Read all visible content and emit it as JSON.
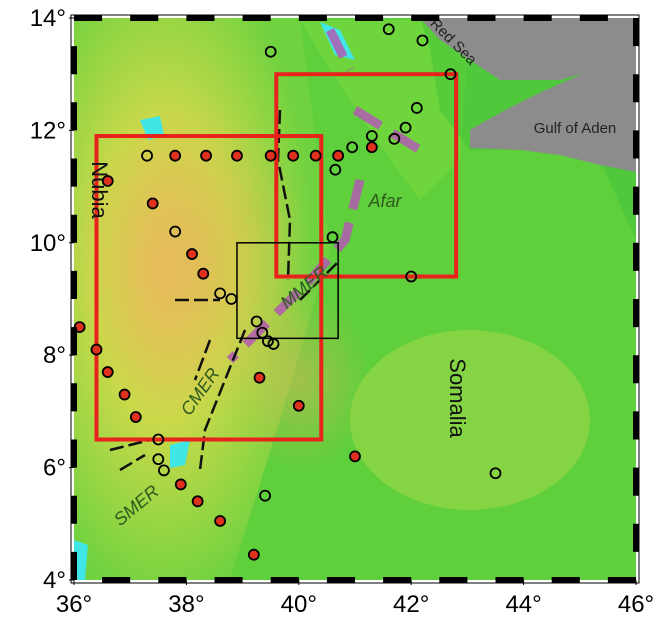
{
  "map": {
    "xlim": [
      36,
      46
    ],
    "ylim": [
      4,
      14
    ],
    "xticks": [
      {
        "value": 36,
        "label": "36°"
      },
      {
        "value": 38,
        "label": "38°"
      },
      {
        "value": 40,
        "label": "40°"
      },
      {
        "value": 42,
        "label": "42°"
      },
      {
        "value": 44,
        "label": "44°"
      },
      {
        "value": 46,
        "label": "46°"
      }
    ],
    "yticks": [
      {
        "value": 4,
        "label": "4°"
      },
      {
        "value": 6,
        "label": "6°"
      },
      {
        "value": 8,
        "label": "8°"
      },
      {
        "value": 10,
        "label": "10°"
      },
      {
        "value": 12,
        "label": "12°"
      },
      {
        "value": 14,
        "label": "14°"
      }
    ],
    "labels": {
      "nubia": "Nubia",
      "somalia": "Somalia",
      "afar": "Afar",
      "red_sea": "Red Sea",
      "gulf": "Gulf of Aden",
      "mmer": "MMER",
      "cmer": "CMER",
      "smer": "SMER"
    },
    "boxes": [
      {
        "color": "#e8231c",
        "lon": [
          36.4,
          40.4
        ],
        "lat": [
          6.5,
          11.9
        ]
      },
      {
        "color": "#e8231c",
        "lon": [
          39.6,
          42.8
        ],
        "lat": [
          9.4,
          13.0
        ]
      },
      {
        "color": "#000000",
        "lon": [
          38.9,
          40.7
        ],
        "lat": [
          8.3,
          10.0
        ]
      }
    ],
    "stations": [
      {
        "color": "#e0301e",
        "lon": [
          36.1,
          36.4,
          36.6,
          36.9,
          37.1,
          36.6,
          37.4,
          37.8,
          38.35,
          38.9,
          39.5,
          39.9,
          40.3,
          40.7,
          41.3,
          38.1,
          38.3,
          39.3,
          40.0,
          37.9,
          38.2,
          38.6,
          39.2,
          41.0
        ],
        "lat": [
          8.5,
          8.1,
          7.7,
          7.3,
          6.9,
          11.1,
          10.7,
          11.55,
          11.55,
          11.55,
          11.55,
          11.55,
          11.55,
          11.55,
          11.7,
          9.8,
          9.45,
          7.6,
          7.1,
          5.7,
          5.4,
          5.05,
          4.45,
          6.2
        ]
      },
      {
        "color": "none",
        "lon": [
          39.5,
          41.6,
          42.2,
          42.7,
          42.1,
          41.9,
          41.7,
          41.3,
          40.95,
          40.65,
          37.3,
          37.8,
          40.6,
          42.0,
          38.6,
          38.8,
          39.25,
          39.35,
          39.45,
          39.55,
          37.5,
          37.5,
          37.6,
          39.4,
          43.5
        ],
        "lat": [
          13.4,
          13.8,
          13.6,
          13.0,
          12.4,
          12.05,
          11.85,
          11.9,
          11.7,
          11.3,
          11.55,
          10.2,
          10.1,
          9.4,
          9.1,
          9.0,
          8.6,
          8.4,
          8.25,
          8.2,
          6.5,
          6.15,
          5.95,
          5.5,
          5.9
        ]
      }
    ]
  }
}
